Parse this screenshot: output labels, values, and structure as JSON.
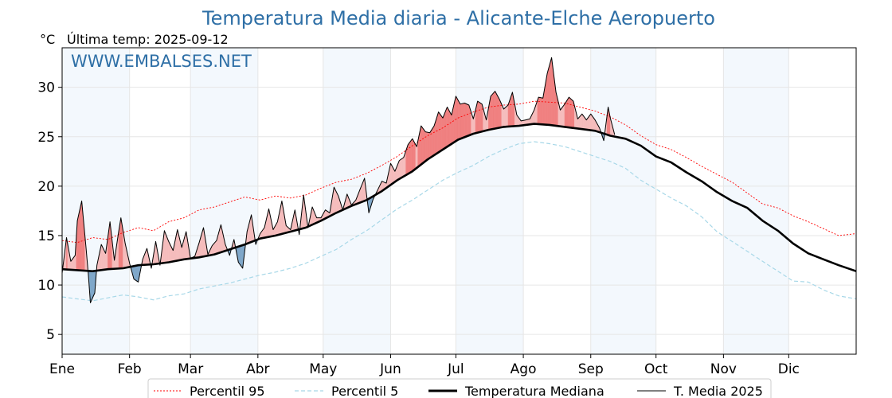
{
  "chart_data": {
    "type": "line",
    "title": "Temperatura Media diaria - Alicante-Elche Aeropuerto",
    "unit": "°C",
    "last_temp": "Última temp: 2025-09-12",
    "watermark": "WWW.EMBALSES.NET",
    "ylim": [
      3,
      34
    ],
    "yticks": [
      5,
      10,
      15,
      20,
      25,
      30
    ],
    "xlim": [
      1,
      366
    ],
    "months": [
      "Ene",
      "Feb",
      "Mar",
      "Abr",
      "May",
      "Jun",
      "Jul",
      "Ago",
      "Sep",
      "Oct",
      "Nov",
      "Dic"
    ],
    "month_start_days": [
      1,
      32,
      60,
      91,
      121,
      152,
      182,
      213,
      244,
      274,
      305,
      335
    ],
    "grid": true,
    "legend_position": "bottom",
    "series": [
      {
        "name": "Percentil 95",
        "x": [
          1,
          8,
          15,
          22,
          29,
          36,
          43,
          50,
          57,
          64,
          71,
          78,
          85,
          92,
          99,
          106,
          113,
          120,
          127,
          134,
          141,
          148,
          155,
          162,
          169,
          176,
          183,
          190,
          197,
          204,
          211,
          218,
          225,
          232,
          239,
          246,
          253,
          260,
          267,
          274,
          281,
          288,
          295,
          302,
          309,
          316,
          323,
          330,
          337,
          344,
          351,
          358,
          366
        ],
        "values": [
          14.5,
          14.3,
          14.8,
          14.6,
          15.3,
          15.8,
          15.5,
          16.4,
          16.8,
          17.6,
          17.9,
          18.4,
          18.9,
          18.6,
          19.0,
          18.8,
          19.1,
          19.8,
          20.4,
          20.7,
          21.3,
          22.1,
          23.0,
          24.1,
          25.1,
          25.9,
          26.9,
          27.5,
          28.0,
          28.2,
          28.3,
          28.6,
          28.5,
          28.4,
          28.0,
          27.6,
          27.0,
          26.2,
          25.1,
          24.2,
          23.7,
          22.9,
          22.0,
          21.2,
          20.4,
          19.3,
          18.2,
          17.8,
          17.0,
          16.4,
          15.7,
          15.0,
          15.2
        ],
        "color": "#ff0000",
        "style": "dotted"
      },
      {
        "name": "Percentil 5",
        "x": [
          1,
          8,
          15,
          22,
          29,
          36,
          43,
          50,
          57,
          64,
          71,
          78,
          85,
          92,
          99,
          106,
          113,
          120,
          127,
          134,
          141,
          148,
          155,
          162,
          169,
          176,
          183,
          190,
          197,
          204,
          211,
          218,
          225,
          232,
          239,
          246,
          253,
          260,
          267,
          274,
          281,
          288,
          295,
          302,
          309,
          316,
          323,
          330,
          337,
          344,
          351,
          358,
          366
        ],
        "values": [
          8.8,
          8.6,
          8.4,
          8.7,
          9.0,
          8.8,
          8.5,
          8.9,
          9.1,
          9.6,
          9.9,
          10.2,
          10.6,
          11.0,
          11.3,
          11.7,
          12.2,
          12.9,
          13.6,
          14.6,
          15.5,
          16.6,
          17.7,
          18.6,
          19.6,
          20.6,
          21.4,
          22.1,
          23.0,
          23.7,
          24.3,
          24.5,
          24.3,
          24.0,
          23.5,
          23.0,
          22.5,
          21.8,
          20.6,
          19.7,
          18.8,
          18.0,
          16.9,
          15.4,
          14.4,
          13.4,
          12.4,
          11.4,
          10.4,
          10.3,
          9.5,
          8.9,
          8.6
        ],
        "color": "#a8d8e8",
        "style": "dashed"
      },
      {
        "name": "Temperatura Mediana",
        "x": [
          1,
          8,
          15,
          22,
          29,
          36,
          43,
          50,
          57,
          64,
          71,
          78,
          85,
          92,
          99,
          106,
          113,
          120,
          127,
          134,
          141,
          148,
          155,
          162,
          169,
          176,
          183,
          190,
          197,
          204,
          211,
          218,
          225,
          232,
          239,
          246,
          253,
          260,
          267,
          274,
          281,
          288,
          295,
          302,
          309,
          316,
          323,
          330,
          337,
          344,
          351,
          358,
          366
        ],
        "values": [
          11.6,
          11.5,
          11.4,
          11.6,
          11.7,
          12.0,
          12.1,
          12.3,
          12.6,
          12.8,
          13.1,
          13.6,
          14.1,
          14.7,
          15.0,
          15.4,
          15.8,
          16.5,
          17.3,
          18.0,
          18.6,
          19.5,
          20.6,
          21.5,
          22.7,
          23.7,
          24.7,
          25.3,
          25.7,
          26.0,
          26.1,
          26.3,
          26.2,
          26.0,
          25.8,
          25.6,
          25.1,
          24.8,
          24.1,
          23.0,
          22.4,
          21.4,
          20.5,
          19.4,
          18.5,
          17.8,
          16.5,
          15.5,
          14.2,
          13.2,
          12.6,
          12.0,
          11.4
        ],
        "color": "#000000",
        "style": "solid-thick"
      },
      {
        "name": "T. Media 2025",
        "x": [
          1,
          3,
          5,
          7,
          8,
          10,
          12,
          13,
          14,
          16,
          17,
          19,
          21,
          23,
          25,
          27,
          28,
          30,
          32,
          34,
          36,
          38,
          40,
          42,
          44,
          46,
          48,
          50,
          52,
          54,
          56,
          58,
          60,
          62,
          64,
          66,
          68,
          70,
          72,
          74,
          76,
          78,
          80,
          82,
          84,
          86,
          88,
          90,
          92,
          94,
          96,
          98,
          100,
          102,
          104,
          106,
          108,
          110,
          112,
          114,
          116,
          118,
          120,
          122,
          124,
          126,
          128,
          130,
          132,
          134,
          136,
          138,
          140,
          142,
          144,
          146,
          148,
          150,
          152,
          154,
          156,
          158,
          160,
          162,
          164,
          166,
          168,
          170,
          172,
          174,
          176,
          178,
          180,
          182,
          184,
          186,
          188,
          190,
          192,
          194,
          196,
          198,
          200,
          202,
          204,
          206,
          208,
          210,
          212,
          214,
          216,
          218,
          220,
          222,
          224,
          226,
          228,
          230,
          232,
          234,
          236,
          238,
          240,
          242,
          244,
          246,
          248,
          250,
          252,
          253,
          255
        ],
        "values": [
          11.2,
          14.8,
          12.4,
          13.0,
          16.5,
          18.5,
          13.8,
          11.2,
          8.2,
          9.2,
          12.0,
          14.1,
          13.2,
          16.4,
          12.5,
          15.4,
          16.8,
          14.2,
          12.2,
          10.6,
          10.3,
          12.6,
          13.7,
          11.7,
          14.4,
          12.0,
          15.5,
          14.4,
          13.5,
          15.6,
          13.8,
          15.4,
          12.7,
          12.9,
          14.3,
          15.8,
          13.1,
          14.0,
          14.5,
          16.1,
          14.1,
          13.0,
          14.6,
          12.3,
          11.7,
          15.4,
          17.1,
          14.1,
          15.2,
          15.8,
          17.7,
          15.6,
          16.4,
          18.5,
          16.0,
          15.6,
          17.6,
          15.1,
          19.1,
          15.8,
          17.9,
          16.8,
          16.8,
          17.6,
          17.3,
          19.9,
          19.0,
          17.6,
          19.2,
          18.1,
          18.6,
          19.7,
          20.8,
          17.3,
          18.7,
          19.6,
          20.5,
          20.3,
          22.3,
          21.5,
          22.6,
          22.9,
          24.2,
          24.8,
          24.0,
          26.1,
          25.5,
          25.4,
          26.1,
          27.5,
          26.9,
          28.0,
          27.2,
          29.1,
          28.3,
          28.4,
          28.2,
          26.8,
          28.6,
          28.3,
          26.7,
          29.1,
          29.6,
          28.8,
          27.8,
          28.2,
          29.5,
          27.2,
          26.6,
          26.7,
          26.8,
          27.7,
          29.0,
          28.9,
          31.4,
          33.0,
          29.5,
          27.7,
          28.3,
          29.0,
          28.6,
          26.8,
          27.3,
          26.7,
          27.3,
          26.7,
          25.9,
          24.6,
          28.0,
          26.9,
          25.2
        ],
        "color": "#000000",
        "style": "solid-thin"
      }
    ]
  },
  "colors": {
    "above": "#f08080",
    "above_light": "#f5bcbc",
    "below": "#7fa7c9",
    "month_band": "#f3f8fd",
    "title": "#2e6fa6"
  }
}
